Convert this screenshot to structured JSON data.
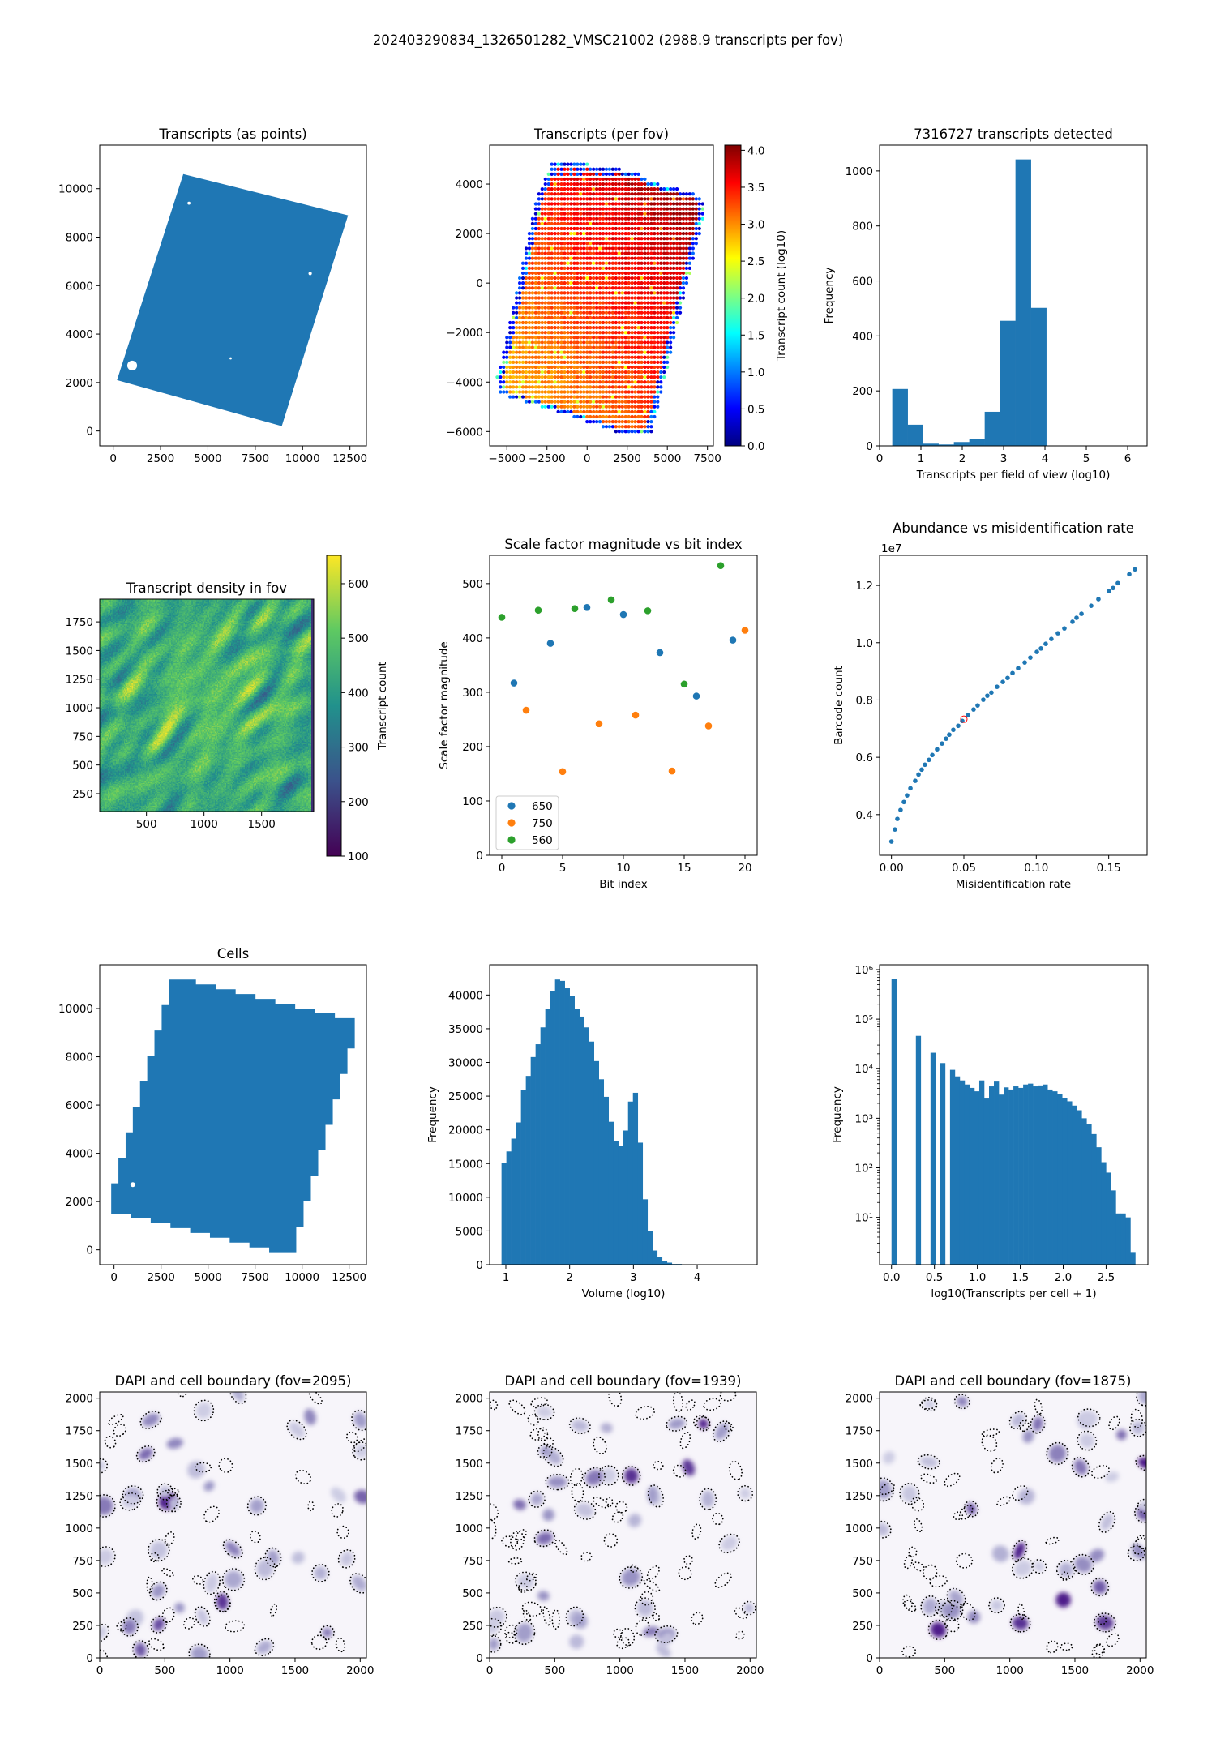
{
  "figure_title": "202403290834_1326501282_VMSC21002 (2988.9 transcripts per fov)",
  "chart_data": [
    {
      "id": "transcripts-points",
      "type": "scatter",
      "title": "Transcripts (as points)",
      "xlabel": "",
      "ylabel": "",
      "xlim": [
        -713,
        13370
      ],
      "ylim": [
        -614,
        11797
      ],
      "xticks": [
        0,
        2500,
        5000,
        7500,
        10000,
        12500
      ],
      "xtick_labels": [
        "0",
        "2500",
        "5000",
        "7500",
        "10000",
        "12500"
      ],
      "yticks": [
        0,
        2000,
        4000,
        6000,
        8000,
        10000
      ],
      "ytick_labels": [
        "0",
        "2000",
        "4000",
        "6000",
        "8000",
        "10000"
      ],
      "region_polygon": [
        [
          200,
          2100
        ],
        [
          3700,
          10600
        ],
        [
          12400,
          8900
        ],
        [
          8900,
          200
        ]
      ],
      "holes": [
        [
          1000,
          2700,
          260
        ],
        [
          10400,
          6500,
          90
        ],
        [
          6200,
          3000,
          60
        ],
        [
          4000,
          9400,
          80
        ]
      ],
      "color": "#1f77b4"
    },
    {
      "id": "transcripts-per-fov",
      "type": "scatter",
      "title": "Transcripts (per fov)",
      "xlabel": "",
      "ylabel": "",
      "xlim": [
        -6074,
        7870
      ],
      "ylim": [
        -6579,
        5574
      ],
      "xticks": [
        -5000,
        -2500,
        0,
        2500,
        5000,
        7500
      ],
      "xtick_labels": [
        "−5000",
        "−2500",
        "0",
        "2500",
        "5000",
        "7500"
      ],
      "yticks": [
        -6000,
        -4000,
        -2000,
        0,
        2000,
        4000
      ],
      "ytick_labels": [
        "−6000",
        "−4000",
        "−2000",
        "0",
        "2000",
        "4000"
      ],
      "grid_spacing": 200,
      "region_polygon": [
        [
          -2200,
          5000
        ],
        [
          -800,
          4900
        ],
        [
          3000,
          4500
        ],
        [
          4000,
          4100
        ],
        [
          6400,
          3700
        ],
        [
          7300,
          3300
        ],
        [
          7300,
          2800
        ],
        [
          4000,
          -6100
        ],
        [
          2100,
          -6100
        ],
        [
          -1300,
          -5300
        ],
        [
          -3500,
          -4900
        ],
        [
          -5400,
          -4500
        ],
        [
          -5600,
          -3800
        ],
        [
          -3200,
          3300
        ],
        [
          -2400,
          4500
        ]
      ],
      "value_model": {
        "interior_mean": 3.45,
        "gradient": 0.35,
        "edge_low": 0.2,
        "edge_high": 1.0
      },
      "colorbar": {
        "label": "Transcript count (log10)",
        "cmap": "jet",
        "range": [
          0,
          4.07
        ],
        "ticks": [
          0,
          0.5,
          1,
          1.5,
          2,
          2.5,
          3,
          3.5,
          4
        ],
        "tick_labels": [
          "0.0",
          "0.5",
          "1.0",
          "1.5",
          "2.0",
          "2.5",
          "3.0",
          "3.5",
          "4.0"
        ]
      }
    },
    {
      "id": "transcripts-hist",
      "type": "bar",
      "title": "7316727 transcripts detected",
      "xlabel": "Transcripts per field of view (log10)",
      "ylabel": "Frequency",
      "xlim": [
        0,
        6.47
      ],
      "ylim": [
        0,
        1094
      ],
      "xticks": [
        0,
        1,
        2,
        3,
        4,
        5,
        6
      ],
      "xtick_labels": [
        "0",
        "1",
        "2",
        "3",
        "4",
        "5",
        "6"
      ],
      "yticks": [
        0,
        200,
        400,
        600,
        800,
        1000
      ],
      "ytick_labels": [
        "0",
        "200",
        "400",
        "600",
        "800",
        "1000"
      ],
      "bin_start": 0.307,
      "bin_width": 0.3725,
      "values": [
        207,
        77,
        8,
        5,
        14,
        24,
        124,
        455,
        1042,
        502
      ],
      "color": "#1f77b4"
    },
    {
      "id": "transcript-density",
      "type": "heatmap",
      "title": "Transcript density in fov",
      "xlabel": "",
      "ylabel": "",
      "xlim": [
        94,
        1953
      ],
      "ylim": [
        94,
        1949
      ],
      "xticks": [
        500,
        1000,
        1500
      ],
      "xtick_labels": [
        "500",
        "1000",
        "1500"
      ],
      "yticks": [
        250,
        500,
        750,
        1000,
        1250,
        1500,
        1750
      ],
      "ytick_labels": [
        "250",
        "500",
        "750",
        "1000",
        "1250",
        "1500",
        "1750"
      ],
      "typical_value": 430,
      "peak_value": 620,
      "colorbar": {
        "label": "Transcript count",
        "cmap": "viridis",
        "range": [
          100,
          652
        ],
        "ticks": [
          100,
          200,
          300,
          400,
          500,
          600
        ],
        "tick_labels": [
          "100",
          "200",
          "300",
          "400",
          "500",
          "600"
        ]
      }
    },
    {
      "id": "scale-factor",
      "type": "scatter",
      "title": "Scale factor magnitude vs bit index",
      "xlabel": "Bit index",
      "ylabel": "Scale factor magnitude",
      "xlim": [
        -1,
        21
      ],
      "ylim": [
        0,
        552
      ],
      "xticks": [
        0,
        5,
        10,
        15,
        20
      ],
      "xtick_labels": [
        "0",
        "5",
        "10",
        "15",
        "20"
      ],
      "yticks": [
        0,
        100,
        200,
        300,
        400,
        500
      ],
      "ytick_labels": [
        "0",
        "100",
        "200",
        "300",
        "400",
        "500"
      ],
      "legend_position": "lower-left",
      "series": [
        {
          "name": "650",
          "color": "#1f77b4",
          "x": [
            1,
            4,
            7,
            10,
            13,
            16,
            19
          ],
          "y": [
            317,
            390,
            456,
            443,
            373,
            293,
            396
          ]
        },
        {
          "name": "750",
          "color": "#ff7f0e",
          "x": [
            2,
            5,
            8,
            11,
            14,
            17,
            20
          ],
          "y": [
            267,
            154,
            242,
            258,
            155,
            238,
            414
          ]
        },
        {
          "name": "560",
          "color": "#2ca02c",
          "x": [
            0,
            3,
            6,
            9,
            12,
            15,
            18
          ],
          "y": [
            438,
            451,
            454,
            470,
            450,
            315,
            533
          ]
        }
      ]
    },
    {
      "id": "abundance",
      "type": "scatter",
      "title": "Abundance vs misidentification rate",
      "xlabel": "Misidentification rate",
      "ylabel": "Barcode count",
      "y_offset_text": "1e7",
      "xlim": [
        -0.0082,
        0.1765
      ],
      "ylim": [
        0.258,
        1.305
      ],
      "xticks": [
        0,
        0.05,
        0.1,
        0.15
      ],
      "xtick_labels": [
        "0.00",
        "0.05",
        "0.10",
        "0.15"
      ],
      "yticks": [
        0.4,
        0.6,
        0.8,
        1.0,
        1.2
      ],
      "ytick_labels": [
        "0.4",
        "0.6",
        "0.8",
        "1.0",
        "1.2"
      ],
      "x": [
        0,
        0.0024,
        0.0041,
        0.0063,
        0.0086,
        0.0108,
        0.0131,
        0.0164,
        0.0187,
        0.0209,
        0.0231,
        0.0259,
        0.0282,
        0.0315,
        0.0349,
        0.0377,
        0.0399,
        0.0427,
        0.0461,
        0.0489,
        0.0528,
        0.0567,
        0.0595,
        0.0634,
        0.0662,
        0.069,
        0.0729,
        0.0769,
        0.0802,
        0.0836,
        0.0875,
        0.092,
        0.0959,
        0.1004,
        0.1032,
        0.1065,
        0.1104,
        0.1149,
        0.1194,
        0.125,
        0.1278,
        0.1312,
        0.1379,
        0.1429,
        0.1502,
        0.153,
        0.1563,
        0.1642,
        0.1681
      ],
      "y": [
        0.306,
        0.348,
        0.385,
        0.416,
        0.444,
        0.467,
        0.492,
        0.518,
        0.54,
        0.557,
        0.574,
        0.591,
        0.608,
        0.628,
        0.648,
        0.665,
        0.679,
        0.696,
        0.71,
        0.727,
        0.747,
        0.767,
        0.781,
        0.801,
        0.815,
        0.826,
        0.846,
        0.863,
        0.877,
        0.894,
        0.911,
        0.931,
        0.948,
        0.968,
        0.98,
        0.996,
        1.013,
        1.033,
        1.05,
        1.073,
        1.087,
        1.101,
        1.129,
        1.152,
        1.18,
        1.191,
        1.208,
        1.239,
        1.256
      ],
      "highlight": {
        "x": 0.05,
        "y": 0.733,
        "color": "#ff0000"
      },
      "color": "#1f77b4"
    },
    {
      "id": "cells",
      "type": "scatter",
      "title": "Cells",
      "xlabel": "",
      "ylabel": "",
      "xlim": [
        -761,
        13420
      ],
      "ylim": [
        -616,
        11815
      ],
      "xticks": [
        0,
        2500,
        5000,
        7500,
        10000,
        12500
      ],
      "xtick_labels": [
        "0",
        "2500",
        "5000",
        "7500",
        "10000",
        "12500"
      ],
      "yticks": [
        0,
        2000,
        4000,
        6000,
        8000,
        10000
      ],
      "ytick_labels": [
        "0",
        "2000",
        "4000",
        "6000",
        "8000",
        "10000"
      ],
      "region_corners": [
        [
          -150,
          1700
        ],
        [
          3300,
          11200
        ],
        [
          12800,
          9400
        ],
        [
          9300,
          -100
        ]
      ],
      "color": "#1f77b4"
    },
    {
      "id": "volume-hist",
      "type": "bar",
      "title": "",
      "xlabel": "Volume (log10)",
      "ylabel": "Frequency",
      "xlim": [
        0.746,
        4.94
      ],
      "ylim": [
        0,
        44490
      ],
      "xticks": [
        1,
        2,
        3,
        4
      ],
      "xtick_labels": [
        "1",
        "2",
        "3",
        "4"
      ],
      "yticks": [
        0,
        5000,
        10000,
        15000,
        20000,
        25000,
        30000,
        35000,
        40000
      ],
      "ytick_labels": [
        "0",
        "5000",
        "10000",
        "15000",
        "20000",
        "25000",
        "30000",
        "35000",
        "40000"
      ],
      "bin_start": 0.932,
      "bin_width": 0.0763,
      "values": [
        15100,
        16800,
        18700,
        21100,
        25900,
        28000,
        30800,
        32700,
        35200,
        37900,
        40600,
        42300,
        42100,
        41000,
        39800,
        37900,
        36800,
        35200,
        33100,
        30200,
        27500,
        24900,
        21200,
        18300,
        17600,
        19900,
        24200,
        25500,
        18100,
        9700,
        5000,
        2100,
        1100,
        600,
        300,
        100,
        100,
        50,
        30,
        20,
        10,
        10,
        5,
        5,
        0,
        0,
        0,
        0,
        0,
        1
      ],
      "color": "#1f77b4"
    },
    {
      "id": "transcripts-per-cell-hist",
      "type": "bar",
      "title": "",
      "xlabel": "log10(Transcripts per cell + 1)",
      "ylabel": "Frequency",
      "yscale": "log",
      "xlim": [
        -0.139,
        2.987
      ],
      "ylim": [
        1.11,
        1253000
      ],
      "xticks": [
        0,
        0.5,
        1,
        1.5,
        2,
        2.5
      ],
      "xtick_labels": [
        "0.0",
        "0.5",
        "1.0",
        "1.5",
        "2.0",
        "2.5"
      ],
      "yticks": [
        10,
        100,
        1000,
        10000,
        100000,
        1000000
      ],
      "ytick_labels": [
        "10¹",
        "10²",
        "10³",
        "10⁴",
        "10⁵",
        "10⁶"
      ],
      "bin_start": 0,
      "bin_width": 0.0568,
      "values": [
        660000,
        0,
        0,
        0,
        0,
        46000,
        0,
        0,
        21000,
        0,
        13000,
        0,
        9500,
        7000,
        5800,
        4800,
        4100,
        3500,
        5800,
        2500,
        4400,
        5500,
        3000,
        4200,
        3800,
        4400,
        4100,
        4800,
        5000,
        4400,
        4600,
        4800,
        3800,
        3500,
        3100,
        2600,
        2200,
        1800,
        1450,
        1000,
        750,
        480,
        260,
        130,
        80,
        35,
        12,
        12,
        10,
        2
      ],
      "color": "#1f77b4"
    },
    {
      "id": "dapi-fov-2095",
      "type": "heatmap",
      "title": "DAPI and cell boundary (fov=2095)",
      "fov": 2095,
      "xlabel": "",
      "ylabel": "",
      "xlim": [
        0,
        2048
      ],
      "ylim": [
        0,
        2048
      ],
      "xticks": [
        0,
        500,
        1000,
        1500,
        2000
      ],
      "xtick_labels": [
        "0",
        "500",
        "1000",
        "1500",
        "2000"
      ],
      "yticks": [
        0,
        250,
        500,
        750,
        1000,
        1250,
        1500,
        1750,
        2000
      ],
      "ytick_labels": [
        "0",
        "250",
        "500",
        "750",
        "1000",
        "1250",
        "1500",
        "1750",
        "2000"
      ],
      "cmap": "Purples",
      "nuclei_count": 45,
      "boundary_only_count": 30
    },
    {
      "id": "dapi-fov-1939",
      "type": "heatmap",
      "title": "DAPI and cell boundary (fov=1939)",
      "fov": 1939,
      "xlabel": "",
      "ylabel": "",
      "xlim": [
        0,
        2048
      ],
      "ylim": [
        0,
        2048
      ],
      "xticks": [
        0,
        500,
        1000,
        1500,
        2000
      ],
      "xtick_labels": [
        "0",
        "500",
        "1000",
        "1500",
        "2000"
      ],
      "yticks": [
        0,
        250,
        500,
        750,
        1000,
        1250,
        1500,
        1750,
        2000
      ],
      "ytick_labels": [
        "0",
        "250",
        "500",
        "750",
        "1000",
        "1250",
        "1500",
        "1750",
        "2000"
      ],
      "cmap": "Purples",
      "nuclei_count": 40,
      "boundary_only_count": 60
    },
    {
      "id": "dapi-fov-1875",
      "type": "heatmap",
      "title": "DAPI and cell boundary (fov=1875)",
      "fov": 1875,
      "xlabel": "",
      "ylabel": "",
      "xlim": [
        0,
        2048
      ],
      "ylim": [
        0,
        2048
      ],
      "xticks": [
        0,
        500,
        1000,
        1500,
        2000
      ],
      "xtick_labels": [
        "0",
        "500",
        "1000",
        "1500",
        "2000"
      ],
      "yticks": [
        0,
        250,
        500,
        750,
        1000,
        1250,
        1500,
        1750,
        2000
      ],
      "ytick_labels": [
        "0",
        "250",
        "500",
        "750",
        "1000",
        "1250",
        "1500",
        "1750",
        "2000"
      ],
      "cmap": "Purples",
      "nuclei_count": 45,
      "boundary_only_count": 40
    }
  ]
}
